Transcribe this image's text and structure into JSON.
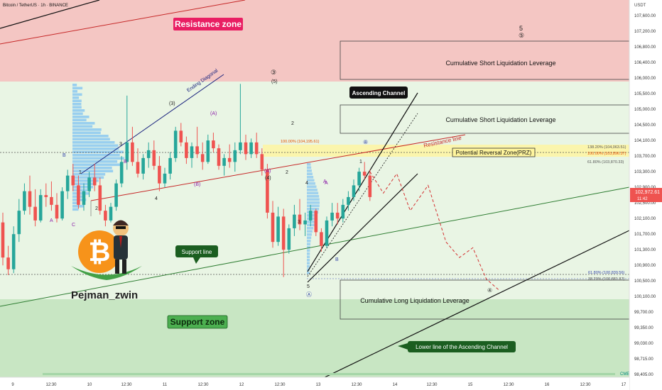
{
  "header": {
    "title": "Bitcoin / TetherUS · 1h · BINANCE",
    "currency": "USDT"
  },
  "price_axis": {
    "ticks": [
      "107,600.00",
      "107,200.00",
      "106,800.00",
      "106,400.00",
      "106,000.00",
      "105,500.00",
      "105,000.00",
      "104,500.00",
      "104,100.00",
      "103,700.00",
      "103,300.00",
      "102,900.00",
      "102,500.00",
      "102,100.00",
      "101,700.00",
      "101,300.00",
      "100,900.00",
      "100,500.00",
      "100,100.00",
      "99,700.00",
      "99,350.00",
      "99,030.00",
      "98,715.00",
      "98,405.00"
    ],
    "last_price": "102,972.61",
    "countdown": "11:42"
  },
  "time_axis": {
    "ticks": [
      "9",
      "12:30",
      "10",
      "12:30",
      "11",
      "12:30",
      "12",
      "12:30",
      "13",
      "12:30",
      "14",
      "12:30",
      "15",
      "12:30",
      "16",
      "12:30",
      "17"
    ]
  },
  "zones": {
    "resistance": "Resistance zone",
    "support": "Support zone",
    "prz": "Potential Reversal Zone(PRZ)",
    "short_liq_1": "Cumulative Short Liquidation Leverage",
    "short_liq_2": "Cumulative Short Liquidation Leverage",
    "long_liq": "Cumulative Long Liquidation Leverage"
  },
  "callouts": {
    "ascending_channel": "Ascending Channel",
    "support_line": "Support line",
    "lower_line": "Lower line of the Ascending Channel"
  },
  "line_labels": {
    "ending_diagonal": "Ending Diagonal",
    "resistance_line": "Resistance line"
  },
  "fib": {
    "f1382": "138.20% (104,063.51)",
    "f100": "100.00% (103,896.37)",
    "f618": "61.80% (103,870.33)",
    "f618_low": "61.80% (100,839.56)",
    "f382_low": "38.20% (100,881.87)",
    "top_label": "100.00% (104,195.61)"
  },
  "waves": [
    "5",
    "⑤",
    "③",
    "(5)",
    "(3)",
    "(A)",
    "3",
    "2",
    "4",
    "1",
    "2",
    "B",
    "A",
    "C",
    "B",
    "A",
    "(A)",
    "(B)",
    "(4)",
    "2",
    "4",
    "5",
    "A",
    "3",
    "⑧",
    "B",
    "④",
    "Ⓐ",
    "1"
  ],
  "brand": {
    "name": "Pejman_zwin",
    "badge": "CME"
  },
  "colors": {
    "up": "#26a69a",
    "down": "#ef5350",
    "resistance_zone": "#f4c6c3",
    "support_zone": "#c8e6c3",
    "prz": "#fff59d",
    "orange": "#f57c00"
  },
  "chart_data": {
    "type": "candlestick",
    "symbol": "Bitcoin / TetherUS",
    "interval": "1h",
    "exchange": "BINANCE",
    "ylim": [
      98405,
      107800
    ],
    "last": 102972.61,
    "zones": [
      {
        "name": "Resistance zone",
        "from": 105780,
        "to": 107900
      },
      {
        "name": "Support zone",
        "from": 98650,
        "to": 100200
      },
      {
        "name": "Potential Reversal Zone(PRZ)",
        "from": 103870,
        "to": 104070
      }
    ],
    "horizontal_levels": [
      103890,
      100840
    ],
    "candles": [
      [
        102300,
        102550,
        101200,
        101400
      ],
      [
        101400,
        101700,
        100950,
        101100
      ],
      [
        101100,
        102200,
        101000,
        102000
      ],
      [
        102000,
        102900,
        101800,
        102600
      ],
      [
        102600,
        103300,
        102500,
        103100
      ],
      [
        103100,
        103500,
        102500,
        102700
      ],
      [
        102700,
        103150,
        102200,
        102350
      ],
      [
        102350,
        103150,
        102300,
        103000
      ],
      [
        103000,
        103300,
        102700,
        102950
      ],
      [
        102950,
        103350,
        102600,
        102750
      ],
      [
        102750,
        103050,
        102300,
        102400
      ],
      [
        102400,
        103200,
        102350,
        103100
      ],
      [
        103100,
        103650,
        102900,
        103500
      ],
      [
        103500,
        103800,
        103100,
        103250
      ],
      [
        103250,
        103500,
        102650,
        102750
      ],
      [
        102750,
        103300,
        102600,
        103100
      ],
      [
        103100,
        103600,
        102950,
        103450
      ],
      [
        103450,
        103800,
        103100,
        103250
      ],
      [
        103250,
        103450,
        102500,
        102600
      ],
      [
        102600,
        102750,
        102200,
        102350
      ],
      [
        102350,
        102800,
        102300,
        102700
      ],
      [
        102700,
        103400,
        102600,
        103300
      ],
      [
        103300,
        104000,
        103200,
        103850
      ],
      [
        103850,
        105550,
        103650,
        104350
      ],
      [
        104350,
        104750,
        103750,
        103850
      ],
      [
        103850,
        104200,
        103450,
        103550
      ],
      [
        103550,
        104050,
        103400,
        103950
      ],
      [
        103950,
        104350,
        103700,
        104150
      ],
      [
        104150,
        104400,
        103650,
        103750
      ],
      [
        103750,
        104000,
        103100,
        103300
      ],
      [
        103300,
        103700,
        103200,
        103550
      ],
      [
        103550,
        104100,
        103400,
        103950
      ],
      [
        103950,
        104750,
        103850,
        104650
      ],
      [
        104650,
        104850,
        104250,
        104350
      ],
      [
        104350,
        104500,
        103800,
        103950
      ],
      [
        103950,
        104350,
        103700,
        104250
      ],
      [
        104250,
        104750,
        103950,
        104050
      ],
      [
        104050,
        104350,
        103650,
        103850
      ],
      [
        103850,
        104550,
        103800,
        104400
      ],
      [
        104400,
        104600,
        104100,
        104200
      ],
      [
        104200,
        104300,
        103650,
        103750
      ],
      [
        103750,
        104050,
        103500,
        103950
      ],
      [
        103950,
        104300,
        103700,
        103850
      ],
      [
        103850,
        104350,
        103600,
        104150
      ],
      [
        104150,
        105850,
        104050,
        104350
      ],
      [
        104350,
        104550,
        103900,
        104050
      ],
      [
        104050,
        104450,
        103950,
        104350
      ],
      [
        104350,
        104600,
        103950,
        104050
      ],
      [
        104050,
        104200,
        103500,
        103650
      ],
      [
        103650,
        103800,
        102400,
        102550
      ],
      [
        102550,
        102850,
        101650,
        101800
      ],
      [
        101800,
        102700,
        101700,
        102450
      ],
      [
        102450,
        102650,
        100900,
        101600
      ],
      [
        101600,
        102250,
        101500,
        102150
      ],
      [
        102150,
        102750,
        101950,
        102500
      ],
      [
        102500,
        102900,
        102100,
        102250
      ],
      [
        102250,
        102550,
        101950,
        102350
      ],
      [
        102350,
        102750,
        102200,
        102600
      ],
      [
        102600,
        102650,
        101950,
        102050
      ],
      [
        102050,
        102150,
        101550,
        101700
      ],
      [
        101700,
        102450,
        101650,
        102350
      ],
      [
        102350,
        102800,
        102200,
        102550
      ],
      [
        102550,
        102800,
        102250,
        102400
      ],
      [
        102400,
        102900,
        102300,
        102750
      ],
      [
        102750,
        103100,
        102600,
        102950
      ],
      [
        102950,
        103400,
        102850,
        103250
      ],
      [
        103250,
        103700,
        103100,
        103600
      ],
      [
        103600,
        103850,
        103400,
        103500
      ],
      [
        103500,
        103650,
        102850,
        102950
      ]
    ],
    "projection": [
      [
        103600,
        0
      ],
      [
        103050,
        3
      ],
      [
        103550,
        6
      ],
      [
        102600,
        9
      ],
      [
        103250,
        13
      ],
      [
        101800,
        17
      ],
      [
        101400,
        20
      ],
      [
        101650,
        23
      ],
      [
        100850,
        26
      ],
      [
        100550,
        29
      ]
    ]
  }
}
